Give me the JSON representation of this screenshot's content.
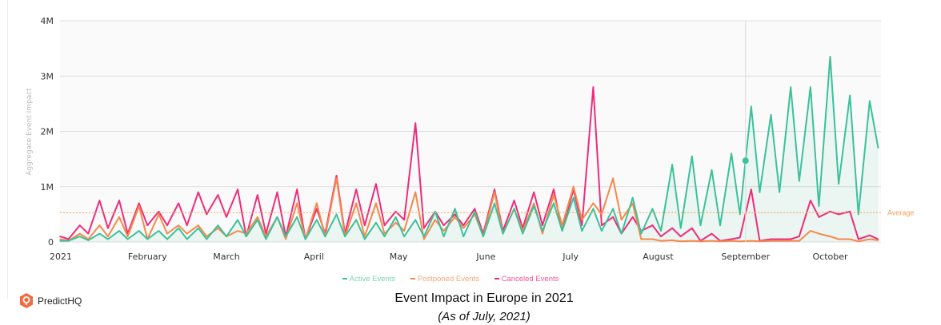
{
  "branding": {
    "logo_text": "PredictHQ"
  },
  "title": "Event Impact in Europe in 2021",
  "subtitle": "(As of July, 2021)",
  "colors": {
    "active": "#3cc19b",
    "postponed": "#f5894a",
    "canceled": "#ee2d7a",
    "average": "#f5a05a",
    "plot_bg": "#fafafa",
    "grid": "#dddddd"
  },
  "chart_data": {
    "type": "line",
    "title": "Event Impact in Europe in 2021",
    "xlabel": "",
    "ylabel": "Aggregate Event Impact",
    "ylim": [
      0,
      4000000
    ],
    "yticks": [
      {
        "value": 0,
        "label": "0"
      },
      {
        "value": 1000000,
        "label": "1M"
      },
      {
        "value": 2000000,
        "label": "2M"
      },
      {
        "value": 3000000,
        "label": "3M"
      },
      {
        "value": 4000000,
        "label": "4M"
      }
    ],
    "xlim": [
      "2021-01-01",
      "2021-10-19"
    ],
    "xticks": [
      {
        "date": "2021-01-01",
        "label": "2021"
      },
      {
        "date": "2021-02-01",
        "label": "February"
      },
      {
        "date": "2021-03-01",
        "label": "March"
      },
      {
        "date": "2021-04-01",
        "label": "April"
      },
      {
        "date": "2021-05-01",
        "label": "May"
      },
      {
        "date": "2021-06-01",
        "label": "June"
      },
      {
        "date": "2021-07-01",
        "label": "July"
      },
      {
        "date": "2021-08-01",
        "label": "August"
      },
      {
        "date": "2021-09-01",
        "label": "September"
      },
      {
        "date": "2021-10-01",
        "label": "October"
      }
    ],
    "grid": true,
    "legend_position": "bottom",
    "average": {
      "label": "Average",
      "value": 530000
    },
    "hover": {
      "date": "2021-09-01",
      "series": "Active Events",
      "value": 1470000
    },
    "x": [
      "2021-01-01",
      "2021-01-04",
      "2021-01-08",
      "2021-01-11",
      "2021-01-15",
      "2021-01-18",
      "2021-01-22",
      "2021-01-25",
      "2021-01-29",
      "2021-02-01",
      "2021-02-05",
      "2021-02-08",
      "2021-02-12",
      "2021-02-15",
      "2021-02-19",
      "2021-02-22",
      "2021-02-26",
      "2021-03-01",
      "2021-03-05",
      "2021-03-08",
      "2021-03-12",
      "2021-03-15",
      "2021-03-19",
      "2021-03-22",
      "2021-03-26",
      "2021-03-29",
      "2021-04-02",
      "2021-04-05",
      "2021-04-09",
      "2021-04-12",
      "2021-04-16",
      "2021-04-19",
      "2021-04-23",
      "2021-04-26",
      "2021-04-30",
      "2021-05-03",
      "2021-05-07",
      "2021-05-10",
      "2021-05-14",
      "2021-05-17",
      "2021-05-21",
      "2021-05-24",
      "2021-05-28",
      "2021-05-31",
      "2021-06-04",
      "2021-06-07",
      "2021-06-11",
      "2021-06-14",
      "2021-06-18",
      "2021-06-21",
      "2021-06-25",
      "2021-06-28",
      "2021-07-02",
      "2021-07-05",
      "2021-07-09",
      "2021-07-12",
      "2021-07-16",
      "2021-07-19",
      "2021-07-23",
      "2021-07-26",
      "2021-07-30",
      "2021-08-02",
      "2021-08-06",
      "2021-08-09",
      "2021-08-13",
      "2021-08-16",
      "2021-08-20",
      "2021-08-23",
      "2021-08-27",
      "2021-08-30",
      "2021-09-03",
      "2021-09-06",
      "2021-09-10",
      "2021-09-13",
      "2021-09-17",
      "2021-09-20",
      "2021-09-24",
      "2021-09-27",
      "2021-10-01",
      "2021-10-04",
      "2021-10-08",
      "2021-10-11",
      "2021-10-15",
      "2021-10-18"
    ],
    "series": [
      {
        "name": "Active Events",
        "key": "active",
        "unit": "M",
        "values": [
          0.02,
          0.02,
          0.1,
          0.03,
          0.15,
          0.05,
          0.2,
          0.05,
          0.2,
          0.05,
          0.2,
          0.05,
          0.25,
          0.05,
          0.25,
          0.05,
          0.3,
          0.1,
          0.4,
          0.1,
          0.4,
          0.05,
          0.45,
          0.1,
          0.45,
          0.05,
          0.4,
          0.1,
          0.5,
          0.1,
          0.4,
          0.05,
          0.35,
          0.1,
          0.45,
          0.1,
          0.4,
          0.1,
          0.55,
          0.1,
          0.6,
          0.1,
          0.55,
          0.1,
          0.7,
          0.15,
          0.6,
          0.15,
          0.65,
          0.2,
          0.7,
          0.2,
          0.8,
          0.2,
          0.6,
          0.2,
          0.6,
          0.15,
          0.8,
          0.15,
          0.6,
          0.2,
          1.4,
          0.25,
          1.55,
          0.3,
          1.3,
          0.3,
          1.6,
          0.5,
          2.45,
          0.9,
          2.3,
          0.9,
          2.8,
          1.1,
          2.8,
          0.65,
          3.35,
          1.05,
          2.65,
          0.5,
          2.55,
          1.7
        ]
      },
      {
        "name": "Postponed Events",
        "key": "postponed",
        "unit": "M",
        "values": [
          0.05,
          0.02,
          0.15,
          0.05,
          0.3,
          0.1,
          0.45,
          0.1,
          0.65,
          0.05,
          0.5,
          0.15,
          0.3,
          0.15,
          0.3,
          0.1,
          0.25,
          0.1,
          0.2,
          0.15,
          0.45,
          0.1,
          0.45,
          0.05,
          0.7,
          0.05,
          0.7,
          0.1,
          1.15,
          0.1,
          0.7,
          0.1,
          0.7,
          0.15,
          0.35,
          0.2,
          0.9,
          0.05,
          0.4,
          0.2,
          0.45,
          0.25,
          0.5,
          0.1,
          0.9,
          0.15,
          0.6,
          0.2,
          0.7,
          0.15,
          0.85,
          0.3,
          1.0,
          0.4,
          0.7,
          0.5,
          1.15,
          0.4,
          0.7,
          0.05,
          0.05,
          0.02,
          0.03,
          0.01,
          0.02,
          0.01,
          0.02,
          0.01,
          0.02,
          0.01,
          0.02,
          0.01,
          0.02,
          0.02,
          0.02,
          0.02,
          0.2,
          0.15,
          0.1,
          0.05,
          0.05,
          0.01,
          0.05,
          0.03
        ]
      },
      {
        "name": "Canceled Events",
        "key": "canceled",
        "unit": "M",
        "values": [
          0.1,
          0.05,
          0.3,
          0.15,
          0.75,
          0.25,
          0.75,
          0.15,
          0.7,
          0.3,
          0.55,
          0.3,
          0.7,
          0.3,
          0.9,
          0.5,
          0.85,
          0.45,
          0.95,
          0.1,
          0.85,
          0.15,
          0.9,
          0.1,
          0.95,
          0.05,
          0.6,
          0.15,
          1.2,
          0.15,
          0.95,
          0.3,
          1.05,
          0.3,
          0.55,
          0.4,
          2.15,
          0.25,
          0.55,
          0.3,
          0.5,
          0.3,
          0.6,
          0.15,
          0.95,
          0.2,
          0.75,
          0.25,
          0.9,
          0.3,
          0.95,
          0.2,
          0.95,
          0.3,
          2.8,
          0.3,
          0.45,
          0.15,
          0.45,
          0.2,
          0.3,
          0.1,
          0.25,
          0.1,
          0.25,
          0.02,
          0.15,
          0.02,
          0.05,
          0.08,
          0.95,
          0.02,
          0.05,
          0.05,
          0.05,
          0.1,
          0.75,
          0.45,
          0.55,
          0.5,
          0.55,
          0.05,
          0.12,
          0.05
        ]
      }
    ]
  }
}
